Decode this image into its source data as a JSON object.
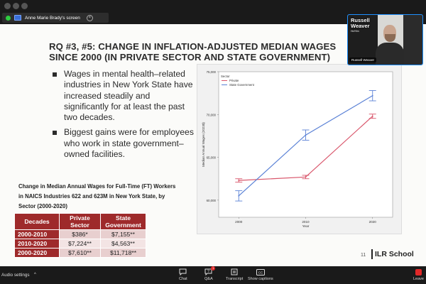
{
  "window": {
    "share_title": "Anne Marie Brady's screen"
  },
  "slide": {
    "title_line1": "RQ #3, #5: CHANGE IN INFLATION-ADJUSTED MEDIAN WAGES",
    "title_line2": "SINCE 2000 (IN PRIVATE SECTOR AND STATE GOVERNMENT)",
    "bullets": [
      "Wages in mental health–related industries in New York State have increased steadily and significantly for at least the past two decades.",
      "Biggest gains were for employees who work in state government–owned facilities."
    ],
    "table_caption": "Change in Median Annual Wages for Full-Time (FT) Workers in NAICS Industries 622 and 623M in New York State, by Sector (2000-2020)",
    "table": {
      "headers": [
        "Decades",
        "Private Sector",
        "State Government"
      ],
      "rows": [
        [
          "2000-2010",
          "$386*",
          "$7,155**"
        ],
        [
          "2010-2020",
          "$7,224**",
          "$4,563**"
        ],
        [
          "2000-2020",
          "$7,610**",
          "$11,718**"
        ]
      ]
    },
    "page_number": "11",
    "logo_text": "ILR School"
  },
  "chart_data": {
    "type": "line",
    "x": [
      2000,
      2010,
      2020
    ],
    "xlabel": "Year",
    "ylabel": "Median Annual Wages (2023$)",
    "ylim": [
      58000,
      75000
    ],
    "yticks": [
      60000,
      65000,
      70000,
      75000
    ],
    "ytick_labels": [
      "60,000",
      "65,000",
      "70,000",
      "75,000"
    ],
    "legend_title": "Sector",
    "legend_position": "top-left",
    "series": [
      {
        "name": "Private",
        "color": "#d9566b",
        "values": [
          62300,
          62700,
          69800
        ],
        "err": [
          200,
          200,
          250
        ]
      },
      {
        "name": "State Government",
        "color": "#5b82d6",
        "values": [
          60500,
          67600,
          72200
        ],
        "err": [
          600,
          600,
          600
        ]
      }
    ]
  },
  "video": {
    "name_line1": "Russell",
    "name_line2": "Weaver",
    "sub": "He/Him",
    "label": "Russell Weaver"
  },
  "bottom": {
    "audio_settings": "Audio settings",
    "chat": "Chat",
    "qa": "Q&A",
    "qa_badge": "1",
    "transcript": "Transcript",
    "captions": "Show captions",
    "leave": "Leave"
  }
}
